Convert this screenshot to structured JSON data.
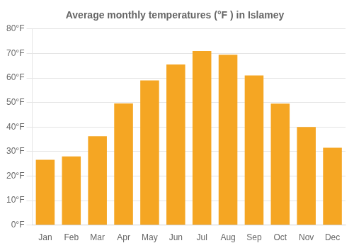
{
  "chart_data": {
    "type": "bar",
    "title": "Average monthly temperatures (°F ) in Islamey",
    "categories": [
      "Jan",
      "Feb",
      "Mar",
      "Apr",
      "May",
      "Jun",
      "Jul",
      "Aug",
      "Sep",
      "Oct",
      "Nov",
      "Dec"
    ],
    "values": [
      26.6,
      28.0,
      36.2,
      49.6,
      59.0,
      65.5,
      71.0,
      69.5,
      61.0,
      49.5,
      40.0,
      31.5
    ],
    "color": "#F5A623",
    "ylim": [
      0,
      80
    ],
    "yticks": [
      {
        "value": 0,
        "label": "0°F"
      },
      {
        "value": 10,
        "label": "10°F"
      },
      {
        "value": 20,
        "label": "20°F"
      },
      {
        "value": 30,
        "label": "30°F"
      },
      {
        "value": 40,
        "label": "40°F"
      },
      {
        "value": 50,
        "label": "50°F"
      },
      {
        "value": 60,
        "label": "60°F"
      },
      {
        "value": 70,
        "label": "70°F"
      },
      {
        "value": 80,
        "label": "80°F"
      }
    ],
    "grid": true
  }
}
